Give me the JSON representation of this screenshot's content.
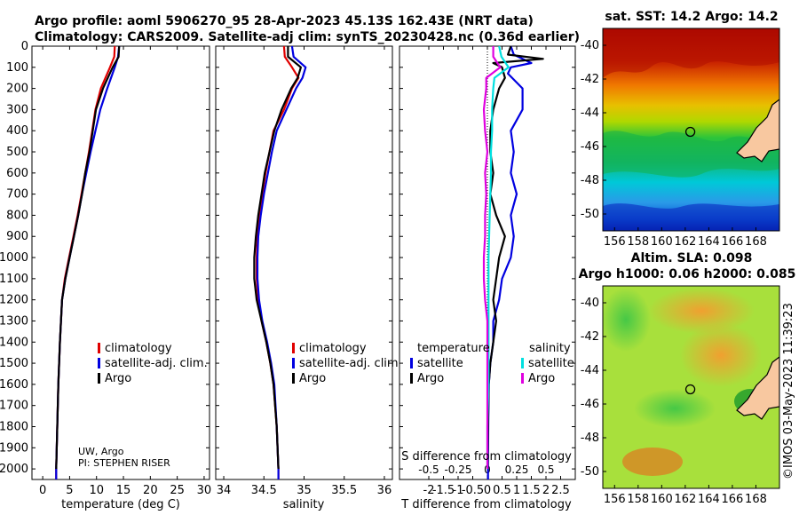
{
  "title": {
    "line1": "Argo profile: aoml 5906270_95 28-Apr-2023 45.13S 162.43E (NRT data)",
    "line2": "Climatology: CARS2009. Satellite-adj clim: synTS_20230428.nc (0.36d earlier)"
  },
  "chart_data": [
    {
      "type": "line",
      "id": "temperature",
      "xlabel": "temperature (deg C)",
      "ylabel": "",
      "xlim": [
        -2,
        31
      ],
      "ylim": [
        2050,
        0
      ],
      "xticks": [
        "0",
        "5",
        "10",
        "15",
        "20",
        "25",
        "30"
      ],
      "xtick_values": [
        0,
        5,
        10,
        15,
        20,
        25,
        30
      ],
      "yticks": [
        "0",
        "100",
        "200",
        "300",
        "400",
        "500",
        "600",
        "700",
        "800",
        "900",
        "1000",
        "1100",
        "1200",
        "1300",
        "1400",
        "1500",
        "1600",
        "1700",
        "1800",
        "1900",
        "2000"
      ],
      "ytick_values": [
        0,
        100,
        200,
        300,
        400,
        500,
        600,
        700,
        800,
        900,
        1000,
        1100,
        1200,
        1300,
        1400,
        1500,
        1600,
        1700,
        1800,
        1900,
        2000
      ],
      "legend": [
        "climatology",
        "satellite-adj. clim.",
        "Argo"
      ],
      "series": [
        {
          "name": "climatology",
          "color": "#e00000",
          "depth": [
            0,
            50,
            100,
            200,
            300,
            400,
            500,
            600,
            700,
            800,
            900,
            1000,
            1100,
            1200,
            1400,
            1600,
            1800,
            2000,
            2050
          ],
          "values": [
            13.4,
            13.3,
            12.5,
            10.8,
            9.8,
            9.2,
            8.6,
            7.9,
            7.2,
            6.5,
            5.7,
            4.9,
            4.1,
            3.6,
            3.2,
            2.9,
            2.7,
            2.5,
            2.5
          ]
        },
        {
          "name": "satellite-adj. clim.",
          "color": "#0000e0",
          "depth": [
            0,
            50,
            100,
            200,
            300,
            400,
            500,
            600,
            700,
            800,
            900,
            1000,
            1100,
            1200,
            1400,
            1600,
            1800,
            2000,
            2050
          ],
          "values": [
            14.2,
            14.0,
            13.4,
            12.0,
            10.7,
            9.8,
            8.9,
            8.1,
            7.3,
            6.6,
            5.8,
            5.0,
            4.2,
            3.6,
            3.2,
            2.9,
            2.7,
            2.5,
            2.5
          ]
        },
        {
          "name": "Argo",
          "color": "#000000",
          "depth": [
            0,
            50,
            100,
            200,
            300,
            400,
            500,
            600,
            700,
            800,
            900,
            1000,
            1100,
            1200,
            1400,
            1600,
            1800,
            2000
          ],
          "values": [
            14.2,
            14.1,
            13.0,
            11.2,
            9.9,
            9.3,
            8.7,
            7.9,
            7.3,
            6.6,
            5.8,
            5.0,
            4.2,
            3.6,
            3.2,
            2.9,
            2.7,
            2.5
          ]
        }
      ],
      "annotation": [
        "UW, Argo",
        "PI: STEPHEN RISER"
      ]
    },
    {
      "type": "line",
      "id": "salinity",
      "xlabel": "salinity",
      "xlim": [
        33.9,
        36.1
      ],
      "ylim": [
        2050,
        0
      ],
      "xticks": [
        "34",
        "34.5",
        "35",
        "35.5",
        "36"
      ],
      "xtick_values": [
        34,
        34.5,
        35,
        35.5,
        36
      ],
      "legend": [
        "climatology",
        "satellite-adj. clim.",
        "Argo"
      ],
      "series": [
        {
          "name": "climatology",
          "color": "#e00000",
          "depth": [
            0,
            50,
            100,
            150,
            200,
            300,
            400,
            500,
            600,
            700,
            800,
            900,
            1000,
            1100,
            1200,
            1300,
            1400,
            1500,
            1600,
            1800,
            2000,
            2050
          ],
          "values": [
            34.75,
            34.76,
            34.85,
            34.93,
            34.85,
            34.75,
            34.62,
            34.57,
            34.52,
            34.48,
            34.45,
            34.42,
            34.41,
            34.41,
            34.43,
            34.47,
            34.53,
            34.58,
            34.62,
            34.66,
            34.68,
            34.68
          ]
        },
        {
          "name": "satellite-adj. clim.",
          "color": "#0000e0",
          "depth": [
            0,
            50,
            100,
            150,
            200,
            300,
            400,
            500,
            600,
            700,
            800,
            900,
            1000,
            1100,
            1200,
            1300,
            1400,
            1500,
            1600,
            1800,
            2000,
            2050
          ],
          "values": [
            34.85,
            34.87,
            35.02,
            34.98,
            34.9,
            34.78,
            34.66,
            34.6,
            34.55,
            34.5,
            34.46,
            34.43,
            34.42,
            34.42,
            34.44,
            34.48,
            34.54,
            34.59,
            34.63,
            34.66,
            34.68,
            34.68
          ]
        },
        {
          "name": "Argo",
          "color": "#000000",
          "depth": [
            0,
            50,
            100,
            150,
            200,
            300,
            400,
            500,
            600,
            700,
            800,
            900,
            1000,
            1100,
            1200,
            1300,
            1400,
            1500,
            1600,
            1800,
            2000
          ],
          "values": [
            34.8,
            34.8,
            34.96,
            34.92,
            34.84,
            34.72,
            34.63,
            34.57,
            34.51,
            34.47,
            34.43,
            34.4,
            34.38,
            34.38,
            34.41,
            34.47,
            34.53,
            34.58,
            34.62,
            34.66,
            34.68
          ]
        }
      ]
    },
    {
      "type": "line",
      "id": "differences",
      "xlabel": "T difference from climatology",
      "xlabel_top": "S difference from climatology",
      "xlim": [
        -3,
        3
      ],
      "ylim": [
        2050,
        0
      ],
      "xticks": [
        "-2",
        "-1.5",
        "-1",
        "-0.5",
        "0",
        "0.5",
        "1",
        "1.5",
        "2",
        "2.5"
      ],
      "xtick_values": [
        -2,
        -1.5,
        -1,
        -0.5,
        0,
        0.5,
        1,
        1.5,
        2,
        2.5
      ],
      "xticks_top": [
        "-0.5",
        "-0.25",
        "0",
        "0.25",
        "0.5"
      ],
      "xtick_values_top": [
        -0.5,
        -0.25,
        0,
        0.25,
        0.5
      ],
      "legend_groups": [
        {
          "title": "temperature",
          "items": [
            "satellite",
            "Argo"
          ]
        },
        {
          "title": "salinity",
          "items": [
            "satellite",
            "Argo"
          ]
        }
      ],
      "series": [
        {
          "name": "temperature satellite",
          "color": "#0000e0",
          "depth": [
            0,
            40,
            80,
            100,
            130,
            200,
            300,
            400,
            500,
            600,
            700,
            800,
            900,
            1000,
            1100,
            1200,
            1300,
            1400,
            1500,
            1600,
            1800,
            2000,
            2050
          ],
          "values": [
            0.8,
            0.9,
            1.5,
            0.8,
            0.7,
            1.2,
            1.2,
            0.8,
            0.9,
            0.8,
            1.0,
            0.8,
            0.9,
            0.8,
            0.5,
            0.4,
            0.2,
            0.2,
            0.1,
            0.05,
            0.03,
            0.02,
            0.02
          ]
        },
        {
          "name": "temperature Argo",
          "color": "#000000",
          "depth": [
            0,
            40,
            60,
            80,
            100,
            150,
            200,
            300,
            400,
            500,
            600,
            700,
            800,
            900,
            1000,
            1100,
            1200,
            1300,
            1400,
            1500,
            1600,
            1800,
            2000
          ],
          "values": [
            0.8,
            0.7,
            1.9,
            0.2,
            0.5,
            0.6,
            0.4,
            0.2,
            0.1,
            0.1,
            0.2,
            0.1,
            0.3,
            0.6,
            0.4,
            0.3,
            0.2,
            0.3,
            0.2,
            0.1,
            0.05,
            0.02,
            0.01
          ]
        },
        {
          "name": "salinity satellite",
          "color": "#00e0e0",
          "depth": [
            0,
            50,
            100,
            150,
            200,
            300,
            400,
            500,
            600,
            800,
            1000,
            1200,
            1400,
            1600,
            1800,
            2000
          ],
          "values": [
            0.1,
            0.12,
            0.18,
            0.06,
            0.05,
            0.04,
            0.04,
            0.03,
            0.03,
            0.02,
            0.01,
            0.01,
            0.01,
            0.01,
            0.0,
            0.0
          ]
        },
        {
          "name": "salinity Argo",
          "color": "#e000e0",
          "depth": [
            0,
            50,
            100,
            150,
            200,
            300,
            400,
            500,
            600,
            700,
            800,
            900,
            1000,
            1100,
            1200,
            1300,
            1400,
            1500,
            1600,
            1800,
            2000
          ],
          "values": [
            0.05,
            0.05,
            0.11,
            -0.01,
            -0.01,
            -0.03,
            -0.02,
            0.0,
            -0.02,
            -0.01,
            -0.02,
            -0.02,
            -0.03,
            -0.03,
            -0.02,
            0.0,
            0.0,
            0.0,
            0.0,
            0.0,
            0.0
          ]
        }
      ]
    },
    {
      "type": "heatmap",
      "id": "sst_map",
      "title": "sat. SST: 14.2 Argo: 14.2",
      "xlim": [
        155,
        170
      ],
      "ylim": [
        -51,
        -39
      ],
      "xticks": [
        "156",
        "158",
        "160",
        "162",
        "164",
        "166",
        "168"
      ],
      "xtick_values": [
        156,
        158,
        160,
        162,
        164,
        166,
        168
      ],
      "yticks": [
        "-40",
        "-42",
        "-44",
        "-46",
        "-48",
        "-50"
      ],
      "ytick_values": [
        -40,
        -42,
        -44,
        -46,
        -48,
        -50
      ],
      "float_position": [
        162.43,
        -45.13
      ]
    },
    {
      "type": "heatmap",
      "id": "sla_map",
      "title_line1": "Altim. SLA: 0.098",
      "title_line2": "Argo h1000: 0.06 h2000: 0.085",
      "xlim": [
        155,
        170
      ],
      "ylim": [
        -51,
        -39
      ],
      "xticks": [
        "156",
        "158",
        "160",
        "162",
        "164",
        "166",
        "168"
      ],
      "xtick_values": [
        156,
        158,
        160,
        162,
        164,
        166,
        168
      ],
      "yticks": [
        "-40",
        "-42",
        "-44",
        "-46",
        "-48",
        "-50"
      ],
      "ytick_values": [
        -40,
        -42,
        -44,
        -46,
        -48,
        -50
      ],
      "float_position": [
        162.43,
        -45.13
      ]
    }
  ],
  "credit": "©IMOS 03-May-2023 11:39:23"
}
